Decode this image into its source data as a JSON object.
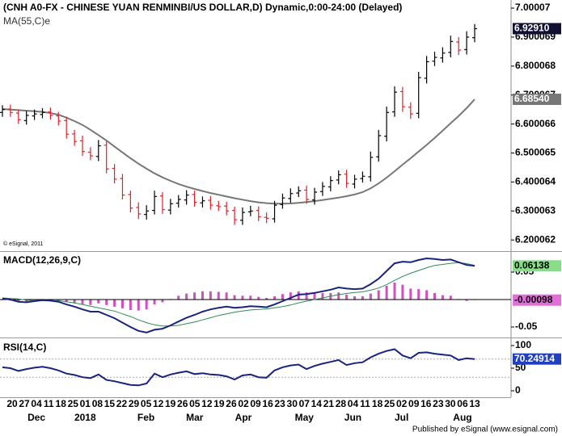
{
  "chart_data": [
    {
      "type": "ohlc",
      "title": "(CNH A0-FX - CHINESE YUAN RENMINBI/US DOLLAR,D) Dynamic,0:00-24:00 (Delayed)",
      "indicator": "MA(55,C)e",
      "copyright": "© eSignal, 2011",
      "open": [
        6.64,
        6.652,
        6.638,
        6.612,
        6.628,
        6.633,
        6.642,
        6.628,
        6.612,
        6.566,
        6.542,
        6.503,
        6.488,
        6.527,
        6.447,
        6.412,
        6.357,
        6.312,
        6.288,
        6.302,
        6.352,
        6.303,
        6.327,
        6.338,
        6.357,
        6.328,
        6.337,
        6.318,
        6.317,
        6.302,
        6.268,
        6.297,
        6.302,
        6.278,
        6.273,
        6.322,
        6.343,
        6.362,
        6.372,
        6.338,
        6.367,
        6.383,
        6.407,
        6.427,
        6.393,
        6.412,
        6.418,
        6.487,
        6.558,
        6.642,
        6.712,
        6.658,
        6.637,
        6.758,
        6.817,
        6.828,
        6.847,
        6.883,
        6.857,
        6.898
      ],
      "high": [
        6.665,
        6.667,
        6.65,
        6.645,
        6.65,
        6.655,
        6.657,
        6.642,
        6.625,
        6.58,
        6.56,
        6.52,
        6.545,
        6.54,
        6.462,
        6.428,
        6.37,
        6.33,
        6.32,
        6.37,
        6.365,
        6.342,
        6.355,
        6.372,
        6.37,
        6.35,
        6.352,
        6.335,
        6.332,
        6.315,
        6.312,
        6.318,
        6.316,
        6.295,
        6.335,
        6.36,
        6.378,
        6.385,
        6.388,
        6.38,
        6.4,
        6.42,
        6.44,
        6.442,
        6.425,
        6.436,
        6.505,
        6.58,
        6.66,
        6.73,
        6.728,
        6.675,
        6.78,
        6.835,
        6.85,
        6.865,
        6.905,
        6.9,
        6.92,
        6.945
      ],
      "low": [
        6.625,
        6.625,
        6.6,
        6.598,
        6.614,
        6.62,
        6.615,
        6.595,
        6.55,
        6.525,
        6.49,
        6.475,
        6.472,
        6.43,
        6.395,
        6.34,
        6.295,
        6.272,
        6.27,
        6.288,
        6.29,
        6.288,
        6.312,
        6.322,
        6.315,
        6.312,
        6.305,
        6.3,
        6.285,
        6.252,
        6.252,
        6.282,
        6.265,
        6.258,
        6.26,
        6.308,
        6.328,
        6.348,
        6.325,
        6.322,
        6.352,
        6.368,
        6.392,
        6.38,
        6.378,
        6.398,
        6.402,
        6.47,
        6.54,
        6.625,
        6.642,
        6.618,
        6.62,
        6.74,
        6.8,
        6.812,
        6.83,
        6.838,
        6.84,
        6.882
      ],
      "close": [
        6.65,
        6.64,
        6.615,
        6.63,
        6.635,
        6.64,
        6.63,
        6.61,
        6.565,
        6.54,
        6.505,
        6.49,
        6.525,
        6.445,
        6.41,
        6.355,
        6.31,
        6.29,
        6.3,
        6.35,
        6.305,
        6.325,
        6.34,
        6.355,
        6.33,
        6.335,
        6.32,
        6.315,
        6.3,
        6.27,
        6.295,
        6.3,
        6.28,
        6.275,
        6.32,
        6.345,
        6.36,
        6.37,
        6.34,
        6.365,
        6.385,
        6.405,
        6.425,
        6.395,
        6.41,
        6.42,
        6.485,
        6.56,
        6.64,
        6.71,
        6.66,
        6.635,
        6.76,
        6.815,
        6.83,
        6.845,
        6.885,
        6.855,
        6.9,
        6.9291
      ],
      "close_label": "6.92910",
      "up_color": "#000000",
      "down_color": "#e0202a",
      "close_label_bg": "#111133",
      "ma": [
        6.652,
        6.65,
        6.648,
        6.646,
        6.644,
        6.642,
        6.638,
        6.632,
        6.622,
        6.61,
        6.597,
        6.58,
        6.562,
        6.543,
        6.522,
        6.502,
        6.482,
        6.463,
        6.446,
        6.43,
        6.416,
        6.404,
        6.393,
        6.384,
        6.376,
        6.369,
        6.362,
        6.356,
        6.35,
        6.344,
        6.339,
        6.334,
        6.33,
        6.327,
        6.325,
        6.325,
        6.326,
        6.328,
        6.331,
        6.334,
        6.338,
        6.342,
        6.346,
        6.351,
        6.357,
        6.365,
        6.378,
        6.395,
        6.415,
        6.437,
        6.46,
        6.482,
        6.505,
        6.528,
        6.552,
        6.577,
        6.603,
        6.628,
        6.655,
        6.6854
      ],
      "ma_label": "6.68540",
      "ma_color": "#777777",
      "ylim": [
        6.1616,
        7.028
      ],
      "yticks": [
        7.00007,
        6.900069,
        6.800068,
        6.700067,
        6.600066,
        6.500065,
        6.400064,
        6.300063,
        6.200062
      ]
    },
    {
      "type": "macd",
      "title": "MACD(12,26,9,C)",
      "series": [
        {
          "color": "#1a237e",
          "label_bg": "#88dd88",
          "last_label": "0.06138",
          "values": [
            0.002,
            0.0,
            -0.004,
            -0.005,
            -0.003,
            -0.001,
            -0.002,
            -0.004,
            -0.009,
            -0.013,
            -0.018,
            -0.022,
            -0.022,
            -0.028,
            -0.034,
            -0.042,
            -0.05,
            -0.057,
            -0.06,
            -0.055,
            -0.053,
            -0.047,
            -0.04,
            -0.033,
            -0.028,
            -0.022,
            -0.018,
            -0.015,
            -0.013,
            -0.015,
            -0.014,
            -0.012,
            -0.013,
            -0.014,
            -0.009,
            -0.003,
            0.003,
            0.009,
            0.01,
            0.012,
            0.015,
            0.018,
            0.022,
            0.02,
            0.019,
            0.02,
            0.028,
            0.038,
            0.052,
            0.066,
            0.069,
            0.068,
            0.072,
            0.075,
            0.074,
            0.072,
            0.073,
            0.068,
            0.063,
            0.06138
          ]
        },
        {
          "color": "#2e8b57",
          "values": [
            0.003,
            0.002,
            0.001,
            -0.001,
            -0.002,
            -0.002,
            -0.002,
            -0.002,
            -0.004,
            -0.006,
            -0.009,
            -0.012,
            -0.015,
            -0.018,
            -0.021,
            -0.026,
            -0.031,
            -0.037,
            -0.042,
            -0.046,
            -0.048,
            -0.048,
            -0.047,
            -0.044,
            -0.041,
            -0.037,
            -0.033,
            -0.029,
            -0.026,
            -0.023,
            -0.021,
            -0.019,
            -0.018,
            -0.017,
            -0.015,
            -0.013,
            -0.01,
            -0.006,
            -0.003,
            0.0,
            0.003,
            0.006,
            0.009,
            0.011,
            0.013,
            0.014,
            0.017,
            0.021,
            0.027,
            0.035,
            0.042,
            0.048,
            0.053,
            0.058,
            0.062,
            0.064,
            0.066,
            0.067,
            0.0655,
            0.0624
          ]
        }
      ],
      "histogram": {
        "color": "#d050c0",
        "label_bg": "#e070d8",
        "last_label": "-0.00098",
        "values": [
          -0.001,
          -0.002,
          -0.005,
          -0.004,
          -0.001,
          0.001,
          0.0,
          -0.002,
          -0.005,
          -0.007,
          -0.009,
          -0.01,
          -0.007,
          -0.01,
          -0.013,
          -0.016,
          -0.019,
          -0.02,
          -0.018,
          -0.009,
          -0.005,
          0.001,
          0.007,
          0.011,
          0.013,
          0.015,
          0.015,
          0.014,
          0.013,
          0.008,
          0.007,
          0.007,
          0.005,
          0.003,
          0.006,
          0.01,
          0.013,
          0.015,
          0.013,
          0.012,
          0.012,
          0.012,
          0.013,
          0.009,
          0.006,
          0.006,
          0.011,
          0.017,
          0.025,
          0.031,
          0.027,
          0.02,
          0.019,
          0.017,
          0.012,
          0.008,
          0.007,
          0.001,
          -0.0025,
          -0.00098
        ]
      },
      "ylim": [
        -0.0691,
        0.0853
      ],
      "yticks": [
        0.05,
        -0.05
      ]
    },
    {
      "type": "rsi",
      "title": "RSI(14,C)",
      "series": [
        {
          "color": "#1a237e",
          "label_bg": "#2040c0",
          "last_label": "70.24914",
          "values": [
            52,
            50,
            44,
            48,
            51,
            53,
            50,
            45,
            38,
            35,
            30,
            28,
            36,
            24,
            21,
            17,
            13,
            12,
            16,
            38,
            30,
            36,
            40,
            43,
            37,
            39,
            36,
            35,
            32,
            25,
            34,
            36,
            30,
            29,
            45,
            52,
            56,
            58,
            48,
            55,
            60,
            64,
            68,
            57,
            61,
            63,
            74,
            82,
            88,
            92,
            78,
            72,
            84,
            85,
            82,
            80,
            78,
            68,
            72,
            70.24914
          ]
        }
      ],
      "levels": [
        70,
        30
      ],
      "ylim": [
        -14.3,
        114.3
      ],
      "yticks": [
        100,
        50,
        0
      ]
    }
  ],
  "x_axis": {
    "categories": [
      "20",
      "27",
      "04",
      "11",
      "18",
      "25",
      "01",
      "08",
      "15",
      "22",
      "29",
      "05",
      "12",
      "19",
      "26",
      "05",
      "12",
      "19",
      "26",
      "02",
      "09",
      "16",
      "23",
      "30",
      "07",
      "14",
      "21",
      "28",
      "04",
      "11",
      "18",
      "25",
      "02",
      "09",
      "16",
      "23",
      "30",
      "06",
      "13"
    ],
    "months": [
      null,
      null,
      "Dec",
      null,
      null,
      null,
      "2018",
      null,
      null,
      null,
      null,
      "Feb",
      null,
      null,
      null,
      "Mar",
      null,
      null,
      null,
      "Apr",
      null,
      null,
      null,
      null,
      "May",
      null,
      null,
      null,
      "Jun",
      null,
      null,
      null,
      "Jul",
      null,
      null,
      null,
      null,
      "Aug",
      null
    ]
  },
  "footer": "Published by eSignal (www.esignal.com)"
}
